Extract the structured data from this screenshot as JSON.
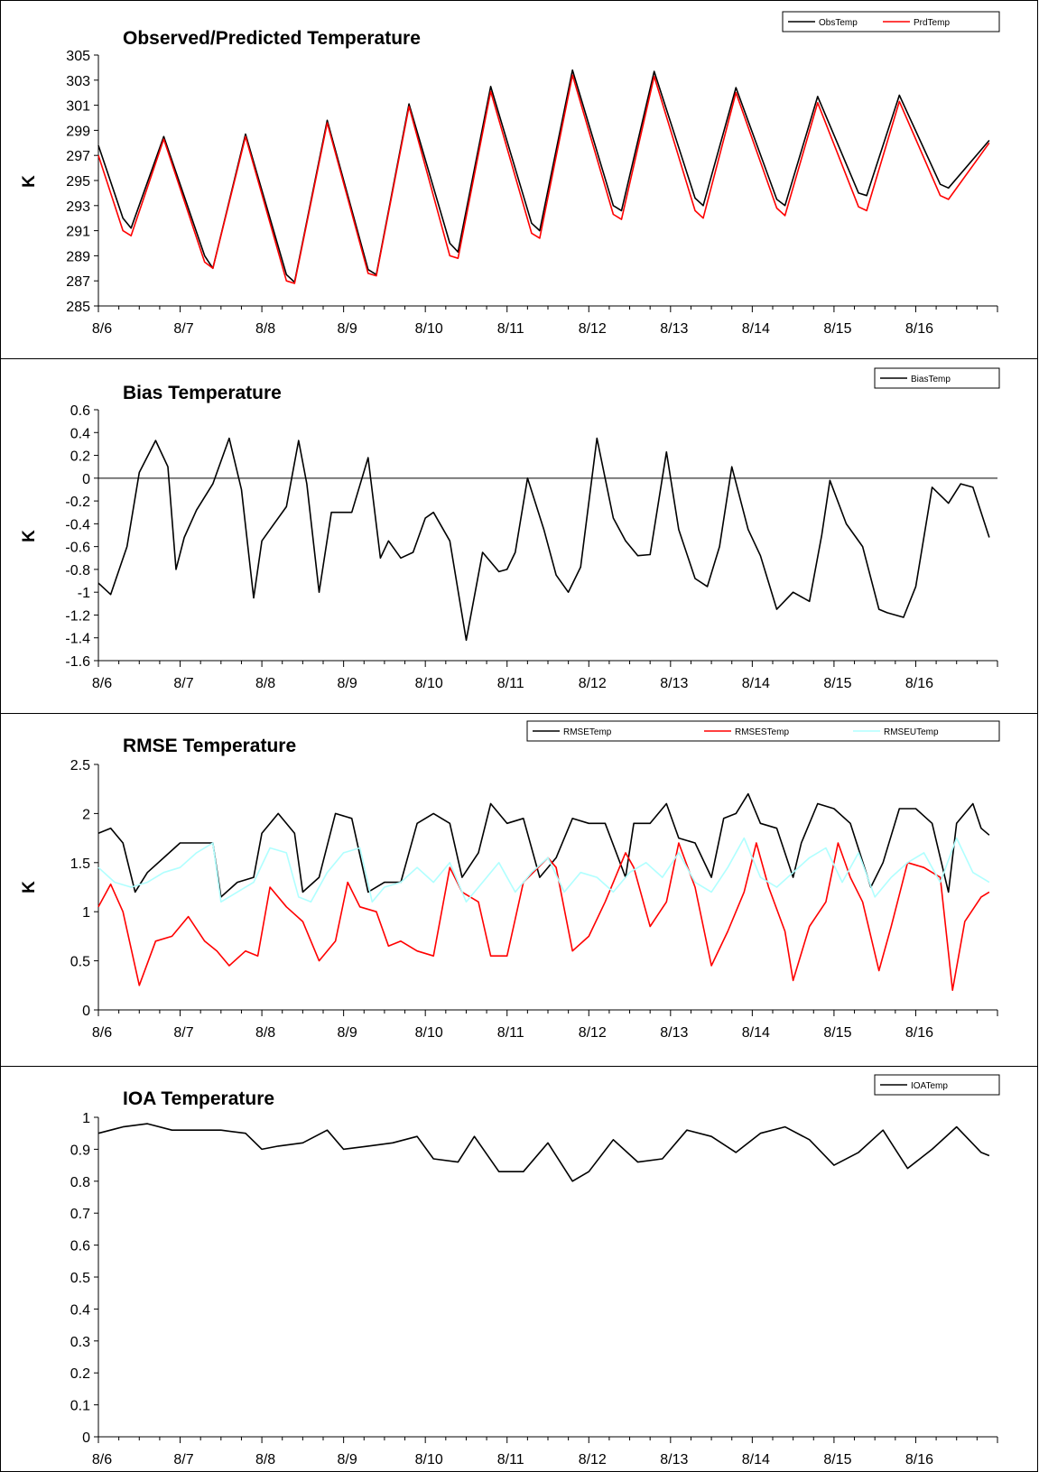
{
  "chart_data": [
    {
      "type": "line",
      "title": "Observed/Predicted Temperature",
      "ylabel": "K",
      "xlabel": "",
      "ylim": [
        285,
        305
      ],
      "yticks": [
        "305",
        "303",
        "301",
        "299",
        "297",
        "295",
        "293",
        "291",
        "289",
        "287",
        "285"
      ],
      "x_tick_labels": [
        "8/6",
        "8/7",
        "8/8",
        "8/9",
        "8/10",
        "8/11",
        "8/12",
        "8/13",
        "8/14",
        "8/15",
        "8/16"
      ],
      "legend_position": "top-right",
      "grid": false,
      "series": [
        {
          "name": "ObsTemp",
          "color": "#000000",
          "x": [
            0,
            0.3,
            0.4,
            0.8,
            1.3,
            1.4,
            1.8,
            2.3,
            2.4,
            2.8,
            3.3,
            3.4,
            3.8,
            4.3,
            4.4,
            4.8,
            5.3,
            5.4,
            5.8,
            6.3,
            6.4,
            6.8,
            7.3,
            7.4,
            7.8,
            8.3,
            8.4,
            8.8,
            9.3,
            9.4,
            9.8,
            10.3,
            10.4,
            10.9
          ],
          "y": [
            297.8,
            292.0,
            291.2,
            298.5,
            289.0,
            288.0,
            298.7,
            287.5,
            286.9,
            299.8,
            287.9,
            287.5,
            301.1,
            290.0,
            289.3,
            302.5,
            291.6,
            291.0,
            303.8,
            293.0,
            292.6,
            303.7,
            293.6,
            293.0,
            302.4,
            293.5,
            293.0,
            301.7,
            294.0,
            293.8,
            301.8,
            294.7,
            294.4,
            298.2
          ]
        },
        {
          "name": "PrdTemp",
          "color": "#ff0000",
          "x": [
            0,
            0.3,
            0.4,
            0.8,
            1.3,
            1.4,
            1.8,
            2.3,
            2.4,
            2.8,
            3.3,
            3.4,
            3.8,
            4.3,
            4.4,
            4.8,
            5.3,
            5.4,
            5.8,
            6.3,
            6.4,
            6.8,
            7.3,
            7.4,
            7.8,
            8.3,
            8.4,
            8.8,
            9.3,
            9.4,
            9.8,
            10.3,
            10.4,
            10.9
          ],
          "y": [
            297.0,
            291.0,
            290.6,
            298.3,
            288.5,
            288.0,
            298.5,
            287.0,
            286.8,
            299.6,
            287.6,
            287.4,
            300.9,
            289.0,
            288.8,
            302.1,
            290.8,
            290.4,
            303.4,
            292.3,
            291.9,
            303.3,
            292.6,
            292.0,
            302.0,
            292.8,
            292.2,
            301.2,
            292.9,
            292.6,
            301.3,
            293.8,
            293.5,
            298.0
          ]
        }
      ]
    },
    {
      "type": "line",
      "title": "Bias Temperature",
      "ylabel": "K",
      "xlabel": "",
      "ylim": [
        -1.6,
        0.6
      ],
      "yticks": [
        "0.6",
        "0.4",
        "0.2",
        "0",
        "-0.2",
        "-0.4",
        "-0.6",
        "-0.8",
        "-1",
        "-1.2",
        "-1.4",
        "-1.6"
      ],
      "x_tick_labels": [
        "8/6",
        "8/7",
        "8/8",
        "8/9",
        "8/10",
        "8/11",
        "8/12",
        "8/13",
        "8/14",
        "8/15",
        "8/16"
      ],
      "legend_position": "top-right",
      "grid": false,
      "series": [
        {
          "name": "BiasTemp",
          "color": "#000000",
          "x": [
            0,
            0.15,
            0.35,
            0.5,
            0.7,
            0.85,
            0.95,
            1.05,
            1.2,
            1.4,
            1.6,
            1.75,
            1.9,
            2.0,
            2.1,
            2.3,
            2.45,
            2.55,
            2.7,
            2.85,
            2.95,
            3.1,
            3.3,
            3.45,
            3.55,
            3.7,
            3.85,
            4.0,
            4.1,
            4.3,
            4.5,
            4.7,
            4.9,
            5.0,
            5.1,
            5.25,
            5.45,
            5.6,
            5.75,
            5.9,
            6.1,
            6.3,
            6.45,
            6.6,
            6.75,
            6.95,
            7.1,
            7.3,
            7.45,
            7.6,
            7.75,
            7.95,
            8.1,
            8.3,
            8.5,
            8.7,
            8.85,
            8.95,
            9.15,
            9.35,
            9.55,
            9.65,
            9.85,
            10.0,
            10.2,
            10.4,
            10.55,
            10.7,
            10.9
          ],
          "y": [
            -0.92,
            -1.02,
            -0.6,
            0.05,
            0.33,
            0.1,
            -0.8,
            -0.52,
            -0.28,
            -0.05,
            0.35,
            -0.1,
            -1.05,
            -0.55,
            -0.45,
            -0.25,
            0.33,
            -0.05,
            -1.0,
            -0.3,
            -0.3,
            -0.3,
            0.18,
            -0.7,
            -0.55,
            -0.7,
            -0.65,
            -0.35,
            -0.3,
            -0.55,
            -1.42,
            -0.65,
            -0.82,
            -0.8,
            -0.65,
            -0.0,
            -0.45,
            -0.85,
            -1.0,
            -0.78,
            0.35,
            -0.35,
            -0.55,
            -0.68,
            -0.67,
            0.23,
            -0.45,
            -0.88,
            -0.95,
            -0.6,
            0.1,
            -0.45,
            -0.68,
            -1.15,
            -1.0,
            -1.08,
            -0.5,
            -0.02,
            -0.4,
            -0.6,
            -1.15,
            -1.18,
            -1.22,
            -0.95,
            -0.08,
            -0.22,
            -0.05,
            -0.08,
            -0.52
          ]
        }
      ]
    },
    {
      "type": "line",
      "title": "RMSE Temperature",
      "ylabel": "K",
      "xlabel": "",
      "ylim": [
        0,
        2.5
      ],
      "yticks": [
        "2.5",
        "2",
        "1.5",
        "1",
        "0.5",
        "0"
      ],
      "x_tick_labels": [
        "8/6",
        "8/7",
        "8/8",
        "8/9",
        "8/10",
        "8/11",
        "8/12",
        "8/13",
        "8/14",
        "8/15",
        "8/16"
      ],
      "legend_position": "top-right",
      "grid": false,
      "series": [
        {
          "name": "RMSETemp",
          "color": "#000000",
          "x": [
            0,
            0.15,
            0.3,
            0.45,
            0.6,
            0.8,
            1.0,
            1.2,
            1.4,
            1.5,
            1.7,
            1.9,
            2.0,
            2.2,
            2.4,
            2.5,
            2.7,
            2.9,
            3.1,
            3.3,
            3.5,
            3.7,
            3.9,
            4.1,
            4.3,
            4.45,
            4.65,
            4.8,
            5.0,
            5.2,
            5.4,
            5.6,
            5.8,
            6.0,
            6.2,
            6.45,
            6.55,
            6.75,
            6.95,
            7.1,
            7.3,
            7.5,
            7.65,
            7.8,
            7.95,
            8.1,
            8.3,
            8.5,
            8.6,
            8.8,
            9.0,
            9.2,
            9.45,
            9.6,
            9.8,
            10.0,
            10.2,
            10.4,
            10.5,
            10.7,
            10.8,
            10.9
          ],
          "y": [
            1.8,
            1.85,
            1.7,
            1.2,
            1.4,
            1.55,
            1.7,
            1.7,
            1.7,
            1.15,
            1.3,
            1.35,
            1.8,
            2.0,
            1.8,
            1.2,
            1.35,
            2.0,
            1.95,
            1.2,
            1.3,
            1.3,
            1.9,
            2.0,
            1.9,
            1.35,
            1.6,
            2.1,
            1.9,
            1.95,
            1.35,
            1.55,
            1.95,
            1.9,
            1.9,
            1.35,
            1.9,
            1.9,
            2.1,
            1.75,
            1.7,
            1.35,
            1.95,
            2.0,
            2.2,
            1.9,
            1.85,
            1.35,
            1.7,
            2.1,
            2.05,
            1.9,
            1.25,
            1.5,
            2.05,
            2.05,
            1.9,
            1.2,
            1.9,
            2.1,
            1.85,
            1.78
          ]
        },
        {
          "name": "RMSESTemp",
          "color": "#ff0000",
          "x": [
            0,
            0.15,
            0.3,
            0.5,
            0.7,
            0.9,
            1.1,
            1.3,
            1.45,
            1.6,
            1.8,
            1.95,
            2.1,
            2.3,
            2.5,
            2.7,
            2.9,
            3.05,
            3.2,
            3.4,
            3.55,
            3.7,
            3.9,
            4.1,
            4.3,
            4.45,
            4.65,
            4.8,
            5.0,
            5.2,
            5.5,
            5.6,
            5.8,
            6.0,
            6.2,
            6.45,
            6.55,
            6.75,
            6.95,
            7.1,
            7.3,
            7.5,
            7.7,
            7.9,
            8.05,
            8.2,
            8.4,
            8.5,
            8.7,
            8.9,
            9.05,
            9.2,
            9.35,
            9.55,
            9.7,
            9.9,
            10.1,
            10.3,
            10.45,
            10.6,
            10.8,
            10.9
          ],
          "y": [
            1.05,
            1.28,
            1.0,
            0.25,
            0.7,
            0.75,
            0.95,
            0.7,
            0.6,
            0.45,
            0.6,
            0.55,
            1.25,
            1.05,
            0.9,
            0.5,
            0.7,
            1.3,
            1.05,
            1.0,
            0.65,
            0.7,
            0.6,
            0.55,
            1.45,
            1.2,
            1.1,
            0.55,
            0.55,
            1.3,
            1.55,
            1.45,
            0.6,
            0.75,
            1.1,
            1.6,
            1.45,
            0.85,
            1.1,
            1.7,
            1.25,
            0.45,
            0.8,
            1.2,
            1.7,
            1.25,
            0.8,
            0.3,
            0.85,
            1.1,
            1.7,
            1.35,
            1.1,
            0.4,
            0.85,
            1.5,
            1.45,
            1.35,
            0.2,
            0.9,
            1.15,
            1.2
          ]
        },
        {
          "name": "RMSEUTemp",
          "color": "#b0ffff",
          "x": [
            0,
            0.2,
            0.4,
            0.6,
            0.8,
            1.0,
            1.2,
            1.4,
            1.5,
            1.7,
            1.9,
            2.1,
            2.3,
            2.45,
            2.6,
            2.8,
            3.0,
            3.2,
            3.35,
            3.5,
            3.7,
            3.9,
            4.1,
            4.3,
            4.5,
            4.7,
            4.9,
            5.1,
            5.3,
            5.5,
            5.7,
            5.9,
            6.1,
            6.3,
            6.5,
            6.7,
            6.9,
            7.1,
            7.3,
            7.5,
            7.7,
            7.9,
            8.1,
            8.3,
            8.5,
            8.7,
            8.9,
            9.1,
            9.3,
            9.5,
            9.7,
            9.9,
            10.1,
            10.3,
            10.5,
            10.7,
            10.9
          ],
          "y": [
            1.45,
            1.3,
            1.25,
            1.3,
            1.4,
            1.45,
            1.6,
            1.7,
            1.1,
            1.2,
            1.3,
            1.65,
            1.6,
            1.15,
            1.1,
            1.4,
            1.6,
            1.65,
            1.1,
            1.25,
            1.3,
            1.45,
            1.3,
            1.5,
            1.1,
            1.3,
            1.5,
            1.2,
            1.4,
            1.55,
            1.2,
            1.4,
            1.35,
            1.2,
            1.4,
            1.5,
            1.35,
            1.6,
            1.3,
            1.2,
            1.45,
            1.75,
            1.35,
            1.25,
            1.4,
            1.55,
            1.65,
            1.3,
            1.6,
            1.15,
            1.35,
            1.5,
            1.6,
            1.3,
            1.75,
            1.4,
            1.3
          ]
        }
      ]
    },
    {
      "type": "line",
      "title": "IOA Temperature",
      "ylabel": "",
      "xlabel": "",
      "ylim": [
        0,
        1
      ],
      "yticks": [
        "1",
        "0.9",
        "0.8",
        "0.7",
        "0.6",
        "0.5",
        "0.4",
        "0.3",
        "0.2",
        "0.1",
        "0"
      ],
      "x_tick_labels": [
        "8/6",
        "8/7",
        "8/8",
        "8/9",
        "8/10",
        "8/11",
        "8/12",
        "8/13",
        "8/14",
        "8/15",
        "8/16"
      ],
      "legend_position": "top-right",
      "grid": false,
      "series": [
        {
          "name": "IOATemp",
          "color": "#000000",
          "x": [
            0,
            0.3,
            0.6,
            0.9,
            1.2,
            1.5,
            1.8,
            2.0,
            2.2,
            2.5,
            2.8,
            3.0,
            3.3,
            3.6,
            3.9,
            4.1,
            4.4,
            4.6,
            4.9,
            5.2,
            5.5,
            5.8,
            6.0,
            6.3,
            6.6,
            6.9,
            7.2,
            7.5,
            7.8,
            8.1,
            8.4,
            8.7,
            9.0,
            9.3,
            9.6,
            9.9,
            10.2,
            10.5,
            10.8,
            10.9
          ],
          "y": [
            0.95,
            0.97,
            0.98,
            0.96,
            0.96,
            0.96,
            0.95,
            0.9,
            0.91,
            0.92,
            0.96,
            0.9,
            0.91,
            0.92,
            0.94,
            0.87,
            0.86,
            0.94,
            0.83,
            0.83,
            0.92,
            0.8,
            0.83,
            0.93,
            0.86,
            0.87,
            0.96,
            0.94,
            0.89,
            0.95,
            0.97,
            0.93,
            0.85,
            0.89,
            0.96,
            0.84,
            0.9,
            0.97,
            0.89,
            0.88
          ]
        }
      ]
    }
  ]
}
